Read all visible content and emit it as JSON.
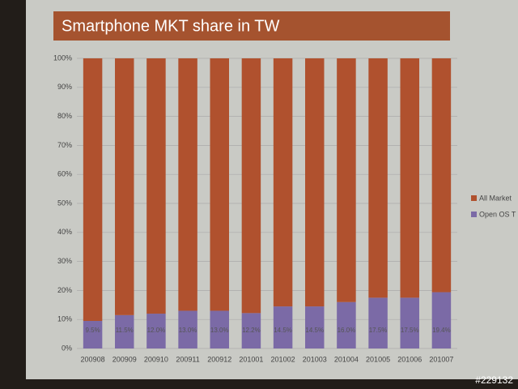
{
  "chart_data": {
    "type": "stacked_bar",
    "title": "Smartphone MKT share in TW",
    "categories": [
      "200908",
      "200909",
      "200910",
      "200911",
      "200912",
      "201001",
      "201002",
      "201003",
      "201004",
      "201005",
      "201006",
      "201007"
    ],
    "series": [
      {
        "name": "Open OS T",
        "color": "#7b6aa6",
        "values": [
          9.5,
          11.5,
          12.0,
          13.0,
          13.0,
          12.2,
          14.5,
          14.5,
          16.0,
          17.5,
          17.5,
          19.4
        ],
        "value_labels": [
          "9.5%",
          "11.5%",
          "12.0%",
          "13.0%",
          "13.0%",
          "12.2%",
          "14.5%",
          "14.5%",
          "16.0%",
          "17.5%",
          "17.5%",
          "19.4%"
        ]
      },
      {
        "name": "All Market",
        "color": "#b0512e",
        "values": [
          90.5,
          88.5,
          88.0,
          87.0,
          87.0,
          87.8,
          85.5,
          85.5,
          84.0,
          82.5,
          82.5,
          80.6
        ]
      }
    ],
    "ylim": [
      0,
      100
    ],
    "yticks": [
      {
        "value": 0,
        "label": "0%"
      },
      {
        "value": 10,
        "label": "10%"
      },
      {
        "value": 20,
        "label": "20%"
      },
      {
        "value": 30,
        "label": "30%"
      },
      {
        "value": 40,
        "label": "40%"
      },
      {
        "value": 50,
        "label": "50%"
      },
      {
        "value": 60,
        "label": "60%"
      },
      {
        "value": 70,
        "label": "70%"
      },
      {
        "value": 80,
        "label": "80%"
      },
      {
        "value": 90,
        "label": "90%"
      },
      {
        "value": 100,
        "label": "100%"
      }
    ],
    "grid": true,
    "legend": "right"
  },
  "watermark": "#229132"
}
